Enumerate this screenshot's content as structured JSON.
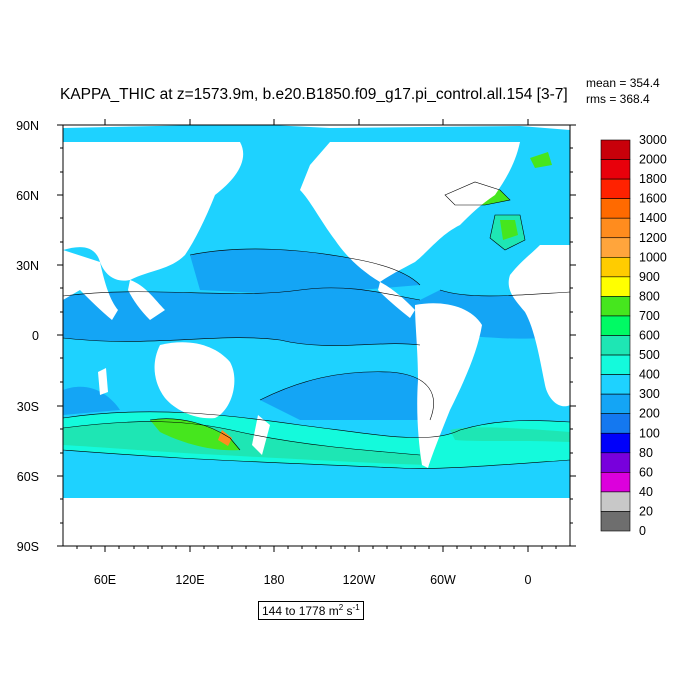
{
  "title": "KAPPA_THIC at z=1573.9m, b.e20.B1850.f09_g17.pi_control.all.154 [3-7]",
  "stats": {
    "mean": "mean = 354.4",
    "rms": "rms = 368.4"
  },
  "range": {
    "text": "144 to 1778 m",
    "unit_exp1": "2",
    "unit_s": " s",
    "unit_exp2": "-1"
  },
  "map": {
    "lat_labels": [
      "90N",
      "60N",
      "30N",
      "0",
      "30S",
      "60S",
      "90S"
    ],
    "lon_labels": [
      "60E",
      "120E",
      "180",
      "120W",
      "60W",
      "0"
    ],
    "lon_range": [
      30,
      390
    ],
    "lat_range": [
      -90,
      90
    ]
  },
  "colorbar": {
    "labels": [
      "3000",
      "2000",
      "1800",
      "1600",
      "1400",
      "1200",
      "1000",
      "900",
      "800",
      "700",
      "600",
      "500",
      "400",
      "300",
      "200",
      "100",
      "80",
      "60",
      "40",
      "20",
      "0"
    ],
    "colors": [
      "#c8000a",
      "#e8000b",
      "#ff2200",
      "#ff6a00",
      "#ff8c1e",
      "#ffa53c",
      "#ffcc00",
      "#ffff00",
      "#46e61e",
      "#00fa64",
      "#1ee6b4",
      "#14fadc",
      "#1ed2ff",
      "#14a5f5",
      "#1478f0",
      "#0000fa",
      "#7800dc",
      "#dc00dc",
      "#c8c8c8",
      "#6e6e6e"
    ]
  },
  "colors": {
    "land": "#ffffff",
    "ocean_base": "#1ed2ff",
    "band_300": "#14a5f5",
    "band_500": "#14fadc",
    "band_600": "#1ee6b4",
    "band_700": "#46e61e",
    "band_high": "#ff8c1e"
  }
}
